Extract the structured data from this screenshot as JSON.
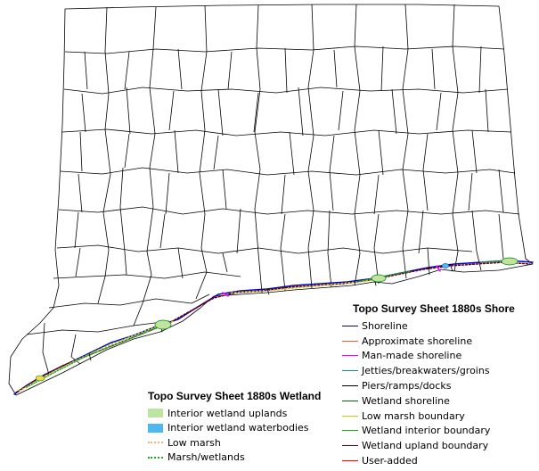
{
  "map": {
    "colors": {
      "town_boundary": "#000000",
      "background": "#ffffff",
      "shoreline_detail": [
        "#0000cc",
        "#cc0000",
        "#ff00ff",
        "#009999",
        "#000000",
        "#008800",
        "#cccc00",
        "#22aa22",
        "#660000",
        "#ff0000"
      ]
    }
  },
  "shore_legend": {
    "title": "Topo Survey Sheet 1880s Shore",
    "items": [
      {
        "label": "Shoreline",
        "color": "#0000cc"
      },
      {
        "label": "Approximate shoreline",
        "color": "#cc6633"
      },
      {
        "label": "Man-made shoreline",
        "color": "#ff00ff"
      },
      {
        "label": "Jetties/breakwaters/groins",
        "color": "#009999"
      },
      {
        "label": "Piers/ramps/docks",
        "color": "#000000"
      },
      {
        "label": "Wetland shoreline",
        "color": "#006600"
      },
      {
        "label": "Low marsh boundary",
        "color": "#cccc00"
      },
      {
        "label": "Wetland interior boundary",
        "color": "#22aa22"
      },
      {
        "label": "Wetland upland boundary",
        "color": "#660000"
      },
      {
        "label": "User-added",
        "color": "#ff0000"
      }
    ]
  },
  "wetland_legend": {
    "title": "Topo Survey Sheet 1880s Wetland",
    "items": [
      {
        "label": "Interior wetland uplands",
        "color": "#bfe3a0",
        "swatch": "box"
      },
      {
        "label": "Interior wetland waterbodies",
        "color": "#4db8ee",
        "swatch": "box"
      },
      {
        "label": "Low marsh",
        "color": "#f2b26b",
        "swatch": "dots"
      },
      {
        "label": "Marsh/wetlands",
        "color": "#22aa22",
        "swatch": "dots"
      }
    ]
  }
}
